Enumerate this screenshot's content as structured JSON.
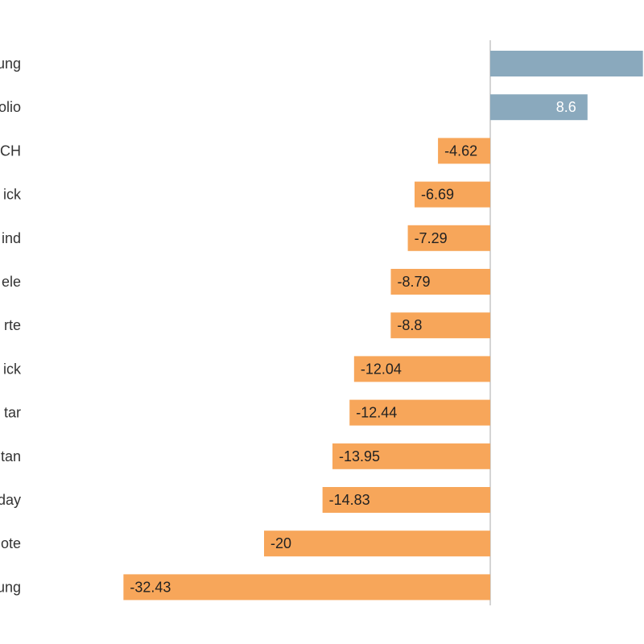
{
  "chart_data": {
    "type": "bar",
    "orientation": "horizontal",
    "categories": [
      "ung",
      "olio",
      "CH",
      "ick",
      "ind",
      "ele",
      "rte",
      "ick",
      "tar",
      "tan",
      "day",
      "ote",
      "ung"
    ],
    "values": [
      null,
      8.6,
      -4.62,
      -6.69,
      -7.29,
      -8.79,
      -8.8,
      -12.04,
      -12.44,
      -13.95,
      -14.83,
      -20,
      -32.43
    ],
    "value_labels": [
      "",
      "8.6",
      "-4.62",
      "-6.69",
      "-7.29",
      "-8.79",
      "-8.8",
      "-12.04",
      "-12.44",
      "-13.95",
      "-14.83",
      "-20",
      "-32.43"
    ],
    "first_bar_estimated_value": 13.5,
    "colors": {
      "positive": "#8aa9bd",
      "negative": "#f7a65a",
      "axis": "#aaaaaa",
      "positive_label": "#ffffff",
      "negative_label": "#222222"
    },
    "title": "",
    "xlabel": "",
    "ylabel": "",
    "grid": false,
    "legend": "none"
  }
}
